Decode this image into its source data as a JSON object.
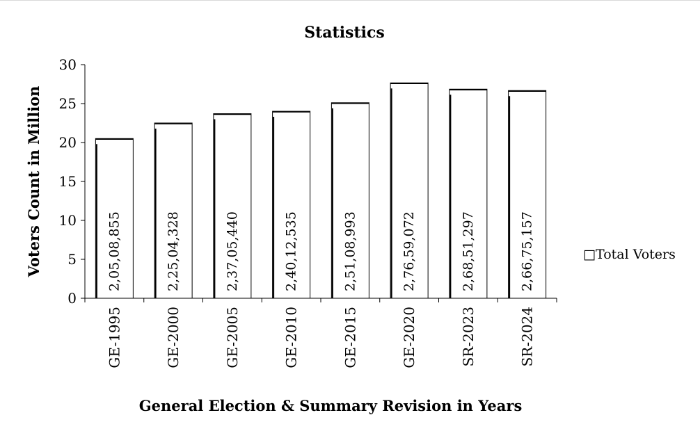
{
  "chart_data": {
    "type": "bar",
    "title": "Statistics",
    "xlabel": "General Election & Summary Revision in Years",
    "ylabel": "Voters  Count in Million",
    "ylim": [
      0,
      30
    ],
    "yticks": [
      "0",
      "5",
      "10",
      "15",
      "20",
      "25",
      "30"
    ],
    "grid": false,
    "legend_position": "right",
    "categories": [
      "GE-1995",
      "GE-2000",
      "GE-2005",
      "GE-2010",
      "GE-2015",
      "GE-2020",
      "SR-2023",
      "SR-2024"
    ],
    "series": [
      {
        "name": "Total Voters",
        "values": [
          20.508855,
          22.504328,
          23.70544,
          24.012535,
          25.108993,
          27.659072,
          26.851297,
          26.675157
        ],
        "labels": [
          "2,05,08,855",
          "2,25,04,328",
          "2,37,05,440",
          "2,40,12,535",
          "2,51,08,993",
          "2,76,59,072",
          "2,68,51,297",
          "2,66,75,157"
        ]
      }
    ]
  },
  "legend_symbol": "□"
}
